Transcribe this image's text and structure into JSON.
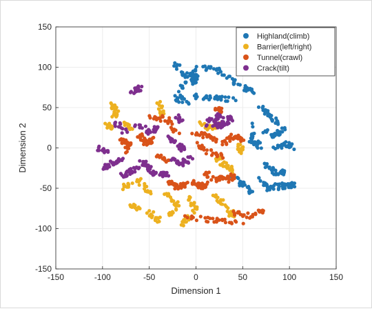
{
  "chart_data": {
    "type": "scatter",
    "title": "",
    "xlabel": "Dimension 1",
    "ylabel": "Dimension 2",
    "xlim": [
      -150,
      150
    ],
    "ylim": [
      -150,
      150
    ],
    "x_ticks": [
      "-150",
      "-100",
      "-50",
      "0",
      "50",
      "100",
      "150"
    ],
    "y_ticks": [
      "150",
      "100",
      "50",
      "0",
      "-50",
      "-100",
      "-150"
    ],
    "grid": true,
    "legend_position": "top-right",
    "series": [
      {
        "name": "Highland(climb)",
        "color": "#1f77b4",
        "clusters": [
          [
            [
              -2,
              102
            ],
            [
              -2,
              78
            ],
            [
              -4,
              92
            ],
            [
              0,
              86
            ]
          ],
          [
            [
              -25,
              105
            ],
            [
              -10,
              88
            ],
            [
              -20,
              62
            ],
            [
              -5,
              55
            ]
          ],
          [
            [
              5,
              100
            ],
            [
              25,
              95
            ],
            [
              45,
              80
            ],
            [
              60,
              70
            ]
          ],
          [
            [
              0,
              64
            ],
            [
              20,
              62
            ],
            [
              42,
              60
            ]
          ],
          [
            [
              68,
              52
            ],
            [
              78,
              42
            ],
            [
              88,
              30
            ]
          ],
          [
            [
              58,
              30
            ],
            [
              60,
              10
            ],
            [
              70,
              0
            ]
          ],
          [
            [
              72,
              20
            ],
            [
              85,
              15
            ],
            [
              95,
              25
            ]
          ],
          [
            [
              82,
              -2
            ],
            [
              95,
              5
            ],
            [
              105,
              0
            ]
          ],
          [
            [
              75,
              -20
            ],
            [
              85,
              -30
            ],
            [
              95,
              -30
            ]
          ],
          [
            [
              70,
              -38
            ],
            [
              78,
              -50
            ],
            [
              92,
              -45
            ]
          ],
          [
            [
              40,
              -35
            ],
            [
              50,
              -45
            ],
            [
              60,
              -55
            ]
          ],
          [
            [
              90,
              -50
            ],
            [
              100,
              -45
            ],
            [
              105,
              -48
            ]
          ]
        ]
      },
      {
        "name": "Barrier(left/right)",
        "color": "#edb120",
        "clusters": [
          [
            [
              -90,
              55
            ],
            [
              -85,
              45
            ],
            [
              -88,
              40
            ]
          ],
          [
            [
              -95,
              30
            ],
            [
              -90,
              25
            ]
          ],
          [
            [
              -75,
              30
            ],
            [
              -70,
              25
            ]
          ],
          [
            [
              -40,
              55
            ],
            [
              -35,
              40
            ]
          ],
          [
            [
              -80,
              -50
            ],
            [
              -60,
              -40
            ],
            [
              -50,
              -55
            ]
          ],
          [
            [
              -70,
              -70
            ],
            [
              -50,
              -80
            ],
            [
              -40,
              -90
            ]
          ],
          [
            [
              -35,
              -55
            ],
            [
              -20,
              -70
            ],
            [
              -30,
              -85
            ]
          ],
          [
            [
              -10,
              -60
            ],
            [
              0,
              -75
            ],
            [
              -15,
              -95
            ]
          ],
          [
            [
              20,
              -60
            ],
            [
              30,
              -70
            ],
            [
              40,
              -85
            ]
          ],
          [
            [
              20,
              -10
            ],
            [
              30,
              -20
            ],
            [
              40,
              -30
            ]
          ],
          [
            [
              5,
              30
            ],
            [
              15,
              25
            ],
            [
              25,
              30
            ]
          ],
          [
            [
              45,
              5
            ],
            [
              50,
              -5
            ]
          ]
        ]
      },
      {
        "name": "Tunnel(crawl)",
        "color": "#d95319",
        "clusters": [
          [
            [
              -50,
              40
            ],
            [
              -30,
              35
            ],
            [
              -20,
              20
            ]
          ],
          [
            [
              -60,
              15
            ],
            [
              -55,
              5
            ],
            [
              -45,
              10
            ]
          ],
          [
            [
              -80,
              10
            ],
            [
              -70,
              5
            ],
            [
              -75,
              -5
            ]
          ],
          [
            [
              -40,
              -10
            ],
            [
              -30,
              -15
            ]
          ],
          [
            [
              -30,
              -40
            ],
            [
              -20,
              -50
            ],
            [
              -10,
              -45
            ]
          ],
          [
            [
              -5,
              20
            ],
            [
              10,
              15
            ],
            [
              20,
              10
            ]
          ],
          [
            [
              0,
              5
            ],
            [
              15,
              -5
            ],
            [
              30,
              -10
            ]
          ],
          [
            [
              10,
              -30
            ],
            [
              20,
              -40
            ],
            [
              30,
              -35
            ]
          ],
          [
            [
              -5,
              -40
            ],
            [
              5,
              -50
            ],
            [
              10,
              -45
            ]
          ],
          [
            [
              30,
              5
            ],
            [
              40,
              15
            ],
            [
              50,
              10
            ]
          ],
          [
            [
              40,
              -35
            ],
            [
              35,
              -40
            ]
          ],
          [
            [
              20,
              50
            ],
            [
              30,
              45
            ]
          ],
          [
            [
              -10,
              -85
            ],
            [
              20,
              -90
            ],
            [
              50,
              -95
            ]
          ],
          [
            [
              40,
              -80
            ],
            [
              60,
              -85
            ],
            [
              75,
              -75
            ]
          ]
        ]
      },
      {
        "name": "Crack(tilt)",
        "color": "#7e2f8e",
        "clusters": [
          [
            [
              10,
              30
            ],
            [
              25,
              40
            ],
            [
              40,
              35
            ],
            [
              20,
              28
            ],
            [
              35,
              28
            ]
          ],
          [
            [
              -70,
              70
            ],
            [
              -55,
              75
            ]
          ],
          [
            [
              -85,
              30
            ],
            [
              -75,
              20
            ]
          ],
          [
            [
              -65,
              30
            ],
            [
              -50,
              20
            ],
            [
              -40,
              25
            ]
          ],
          [
            [
              -105,
              0
            ],
            [
              -95,
              -5
            ]
          ],
          [
            [
              -100,
              -25
            ],
            [
              -90,
              -20
            ],
            [
              -80,
              -15
            ]
          ],
          [
            [
              -80,
              -35
            ],
            [
              -70,
              -30
            ],
            [
              -60,
              -25
            ]
          ],
          [
            [
              -60,
              -15
            ],
            [
              -50,
              -25
            ],
            [
              -45,
              -35
            ]
          ],
          [
            [
              -30,
              15
            ],
            [
              -20,
              5
            ],
            [
              -10,
              -5
            ]
          ],
          [
            [
              -25,
              -15
            ],
            [
              -15,
              -20
            ],
            [
              -5,
              -10
            ]
          ],
          [
            [
              -40,
              -30
            ],
            [
              -30,
              -35
            ]
          ],
          [
            [
              -20,
              40
            ],
            [
              -15,
              30
            ]
          ]
        ]
      }
    ]
  }
}
